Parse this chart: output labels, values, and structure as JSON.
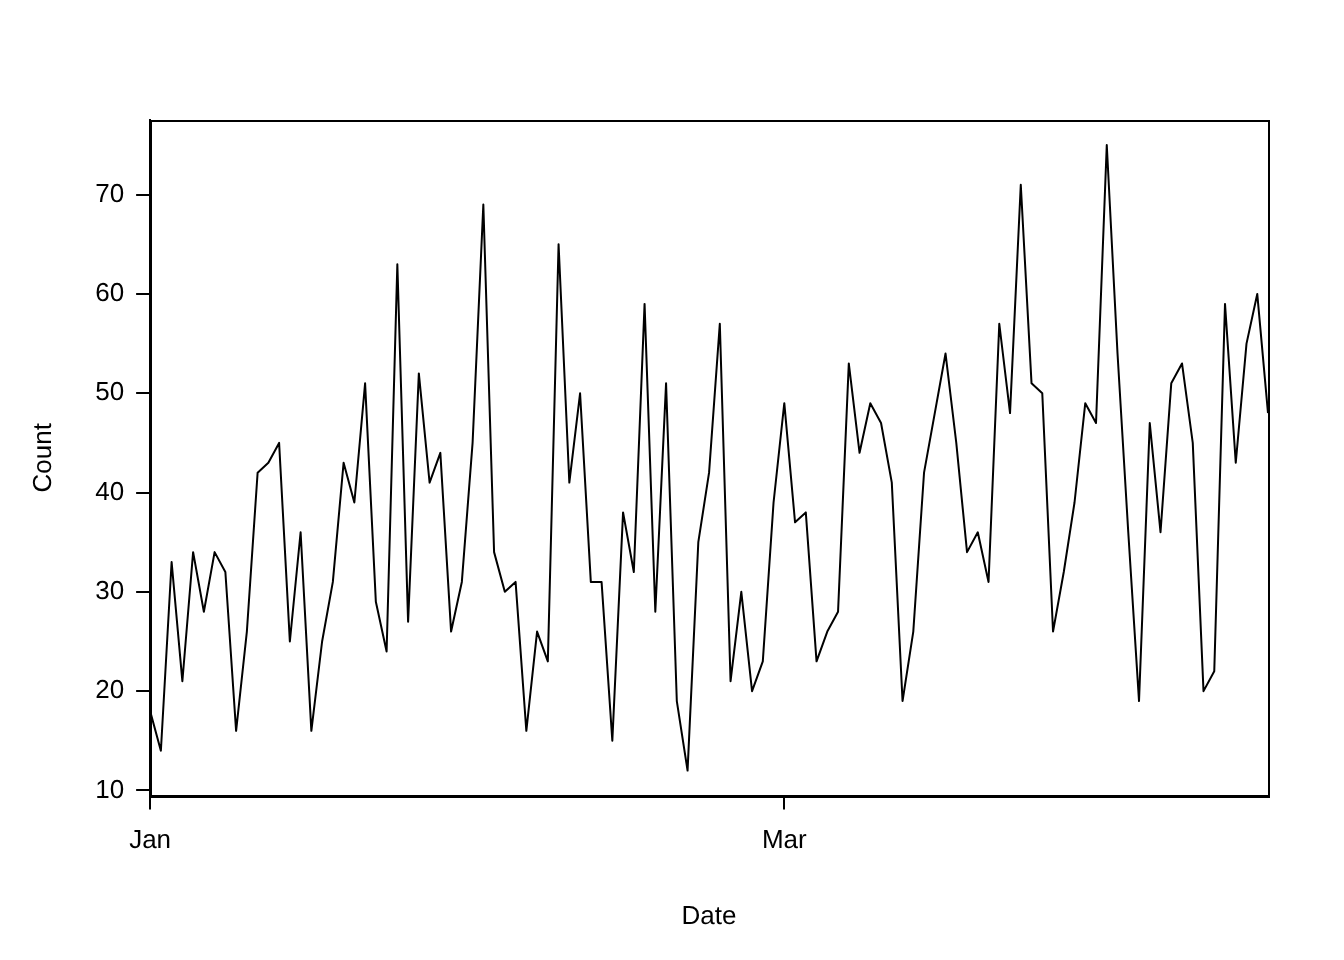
{
  "chart_data": {
    "type": "line",
    "xlabel": "Date",
    "ylabel": "Count",
    "x": [
      "--01-01",
      "--01-02",
      "--01-03",
      "--01-04",
      "--01-05",
      "--01-06",
      "--01-07",
      "--01-08",
      "--01-09",
      "--01-10",
      "--01-11",
      "--01-12",
      "--01-13",
      "--01-14",
      "--01-15",
      "--01-16",
      "--01-17",
      "--01-18",
      "--01-19",
      "--01-20",
      "--01-21",
      "--01-22",
      "--01-23",
      "--01-24",
      "--01-25",
      "--01-26",
      "--01-27",
      "--01-28",
      "--01-29",
      "--01-30",
      "--01-31",
      "--02-01",
      "--02-02",
      "--02-03",
      "--02-04",
      "--02-05",
      "--02-06",
      "--02-07",
      "--02-08",
      "--02-09",
      "--02-10",
      "--02-11",
      "--02-12",
      "--02-13",
      "--02-14",
      "--02-15",
      "--02-16",
      "--02-17",
      "--02-18",
      "--02-19",
      "--02-20",
      "--02-21",
      "--02-22",
      "--02-23",
      "--02-24",
      "--02-25",
      "--02-26",
      "--02-27",
      "--02-28",
      "--03-01",
      "--03-02",
      "--03-03",
      "--03-04",
      "--03-05",
      "--03-06",
      "--03-07",
      "--03-08",
      "--03-09",
      "--03-10",
      "--03-11",
      "--03-12",
      "--03-13",
      "--03-14",
      "--03-15",
      "--03-16",
      "--03-17",
      "--03-18",
      "--03-19",
      "--03-20",
      "--03-21",
      "--03-22",
      "--03-23",
      "--03-24",
      "--03-25",
      "--03-26",
      "--03-27",
      "--03-28",
      "--03-29",
      "--03-30",
      "--03-31",
      "--04-01",
      "--04-02",
      "--04-03",
      "--04-04",
      "--04-05",
      "--04-06",
      "--04-07",
      "--04-08",
      "--04-09",
      "--04-10",
      "--04-11",
      "--04-12",
      "--04-13",
      "--04-14",
      "--04-15"
    ],
    "series": [
      {
        "color": "#000000",
        "values": [
          18,
          14,
          33,
          21,
          34,
          28,
          34,
          32,
          16,
          26,
          42,
          43,
          45,
          25,
          36,
          16,
          25,
          31,
          43,
          39,
          51,
          29,
          24,
          63,
          27,
          52,
          41,
          44,
          26,
          31,
          45,
          69,
          34,
          30,
          31,
          16,
          26,
          23,
          65,
          41,
          50,
          31,
          31,
          15,
          38,
          32,
          59,
          28,
          51,
          19,
          12,
          35,
          42,
          57,
          21,
          30,
          20,
          23,
          39,
          49,
          37,
          38,
          23,
          26,
          28,
          53,
          44,
          49,
          47,
          41,
          19,
          26,
          42,
          48,
          54,
          45,
          34,
          36,
          31,
          57,
          48,
          71,
          51,
          50,
          26,
          32,
          39,
          49,
          47,
          75,
          54,
          36,
          19,
          47,
          36,
          51,
          53,
          45,
          20,
          22,
          59,
          43,
          55,
          60,
          48
        ]
      }
    ],
    "xlim": [
      "--01-01",
      "--04-15"
    ],
    "xticks": [
      {
        "value": "--01-01",
        "label": "Jan"
      },
      {
        "value": "--03-01",
        "label": "Mar"
      }
    ],
    "ylim": [
      9.48,
      77.52
    ],
    "yticks": [
      10,
      20,
      30,
      40,
      50,
      60,
      70
    ],
    "grid": false,
    "legend": false,
    "marker": "none",
    "line_style": "solid"
  }
}
